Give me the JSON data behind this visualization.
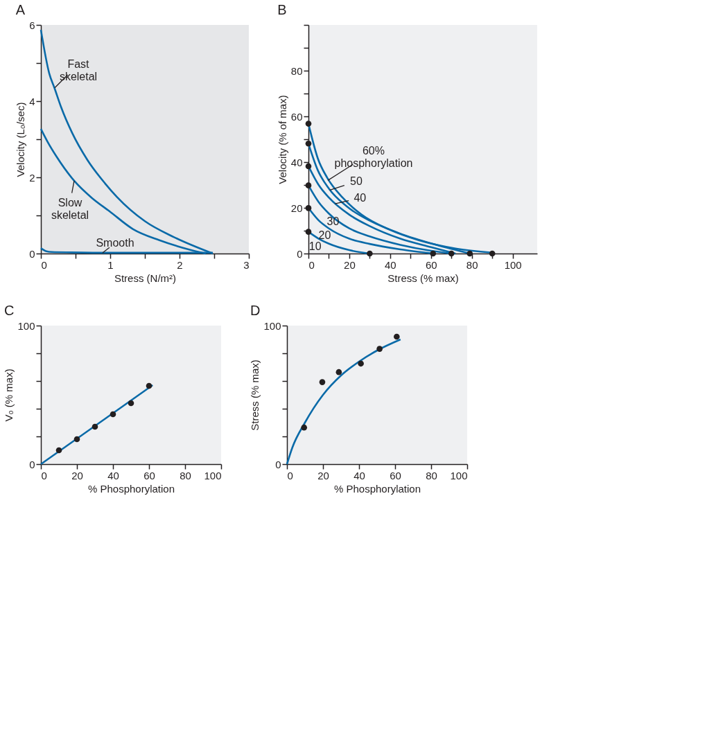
{
  "chart_data": [
    {
      "type": "line",
      "title": "A",
      "xlabel": "Stress (N/m²)",
      "ylabel": "Velocity (L₀/sec)",
      "xlim": [
        0,
        3
      ],
      "ylim": [
        0,
        6
      ],
      "xticks": [
        0,
        {
          "value": 0.5,
          "label": null
        },
        1,
        {
          "value": 1.5,
          "label": null
        },
        2,
        {
          "value": 2.5,
          "label": null
        },
        3
      ],
      "yticks": [
        0,
        {
          "value": 1,
          "label": null
        },
        2,
        {
          "value": 3,
          "label": null
        },
        4,
        {
          "value": 5,
          "label": null
        },
        6
      ],
      "grid": false,
      "series": [
        {
          "color": "#0a6aa8",
          "x": [
            0,
            0.12,
            0.195,
            0.29,
            0.45,
            0.67,
            0.926,
            1.095,
            1.5,
            1.92,
            2.48
          ],
          "values": [
            5.87,
            4.73,
            4.35,
            3.85,
            3.17,
            2.46,
            1.84,
            1.49,
            0.85,
            0.43,
            0
          ]
        },
        {
          "color": "#0a6aa8",
          "x": [
            0,
            0.1,
            0.227,
            0.48,
            0.735,
            0.99,
            1.33,
            1.71,
            2.13,
            2.38
          ],
          "values": [
            3.27,
            2.92,
            2.54,
            1.91,
            1.46,
            1.11,
            0.64,
            0.35,
            0.11,
            0
          ]
        },
        {
          "color": "#0a6aa8",
          "x": [
            0,
            0.08,
            0.16,
            0.44,
            1,
            2,
            2.48
          ],
          "values": [
            0.14,
            0.06,
            0.04,
            0.03,
            0.02,
            0.02,
            0.02
          ]
        }
      ],
      "annotations": [
        {
          "text": "Fast\nskeletal",
          "x": 0.2,
          "y": 4.35
        },
        {
          "text": "Slow\nskeletal",
          "x": 0.48,
          "y": 1.91
        },
        {
          "text": "Smooth",
          "x": 0.89,
          "y": 0.02
        }
      ]
    },
    {
      "type": "line",
      "title": "B",
      "xlabel": "Stress (% max)",
      "ylabel": "Velocity (% of max)",
      "xlim": [
        0,
        112
      ],
      "ylim": [
        0,
        100
      ],
      "xticks": [
        0,
        {
          "value": 10,
          "label": null
        },
        20,
        {
          "value": 30,
          "label": null
        },
        40,
        {
          "value": 50,
          "label": null
        },
        60,
        {
          "value": 70,
          "label": null
        },
        80,
        {
          "value": 90,
          "label": null
        },
        100
      ],
      "yticks": [
        0,
        {
          "value": 10,
          "label": null
        },
        20,
        {
          "value": 30,
          "label": null
        },
        40,
        {
          "value": 50,
          "label": null
        },
        60,
        {
          "value": 70,
          "label": null
        },
        80,
        {
          "value": 90,
          "label": null
        },
        {
          "value": 100,
          "label": null
        }
      ],
      "grid": false,
      "series": [
        {
          "color": "#0a6aa8",
          "x": [
            0,
            5,
            10,
            20,
            30
          ],
          "values": [
            9.5,
            6.5,
            4.3,
            1.5,
            0
          ]
        },
        {
          "color": "#0a6aa8",
          "x": [
            0,
            5,
            10,
            20,
            30,
            45,
            61
          ],
          "values": [
            19.9,
            14.5,
            11,
            6.5,
            4.2,
            1.8,
            0
          ]
        },
        {
          "color": "#0a6aa8",
          "x": [
            0,
            5,
            10,
            20,
            30,
            45,
            60,
            70
          ],
          "values": [
            29.8,
            22.5,
            17.5,
            11,
            7.5,
            3.8,
            1.2,
            0
          ]
        },
        {
          "color": "#0a6aa8",
          "x": [
            0,
            5,
            10,
            20,
            30,
            45,
            60,
            72
          ],
          "values": [
            38.2,
            30,
            24.5,
            17,
            12,
            6.5,
            2.8,
            0
          ]
        },
        {
          "color": "#0a6aa8",
          "x": [
            0,
            4.6,
            10.2,
            18.5,
            30.6,
            44.4,
            63,
            79
          ],
          "values": [
            48.1,
            36.4,
            28.2,
            20.8,
            14.1,
            8.9,
            3.7,
            0
          ]
        },
        {
          "color": "#0a6aa8",
          "x": [
            0,
            4.6,
            9.3,
            16.7,
            25.9,
            39.8,
            53.7,
            72,
            90
          ],
          "values": [
            56.8,
            41.6,
            33,
            24.5,
            17.1,
            10.4,
            5.9,
            2.2,
            0.4
          ]
        },
        {
          "type": "scatter",
          "color": "#231f20",
          "x": [
            0,
            0,
            0,
            0,
            0,
            0,
            30,
            61,
            70,
            79,
            90
          ],
          "values": [
            9.5,
            19.9,
            29.8,
            38.2,
            48.1,
            56.8,
            0,
            0,
            0,
            0,
            0
          ]
        }
      ],
      "annotations": [
        {
          "text": "60%\nphosphorylation",
          "x": 9.5,
          "y": 32
        },
        {
          "text": "50",
          "x": 10.5,
          "y": 27.8
        },
        {
          "text": "40",
          "x": 13,
          "y": 21.8
        },
        {
          "text": "30",
          "x": 10,
          "y": 17.5
        },
        {
          "text": "20",
          "x": 10,
          "y": 11
        },
        {
          "text": "10",
          "x": 5,
          "y": 6.5
        }
      ]
    },
    {
      "type": "scatter",
      "title": "C",
      "xlabel": "% Phosphorylation",
      "ylabel": "V₀ (% max)",
      "xlim": [
        0,
        100
      ],
      "ylim": [
        0,
        100
      ],
      "xticks": [
        0,
        20,
        40,
        60,
        80,
        100
      ],
      "yticks": [
        0,
        {
          "value": 20,
          "label": null
        },
        {
          "value": 40,
          "label": null
        },
        {
          "value": 60,
          "label": null
        },
        {
          "value": 80,
          "label": null
        },
        100
      ],
      "grid": false,
      "series": [
        {
          "type": "line",
          "color": "#0a6aa8",
          "x": [
            0,
            62
          ],
          "values": [
            0,
            57
          ]
        },
        {
          "color": "#231f20",
          "x": [
            10,
            20,
            30,
            40,
            50,
            60
          ],
          "values": [
            10,
            18,
            27,
            36,
            44,
            56.5
          ]
        }
      ]
    },
    {
      "type": "scatter",
      "title": "D",
      "xlabel": "% Phosphorylation",
      "ylabel": "Stress (% max)",
      "xlim": [
        0,
        100
      ],
      "ylim": [
        0,
        100
      ],
      "xticks": [
        0,
        20,
        40,
        60,
        80,
        100
      ],
      "yticks": [
        0,
        {
          "value": 20,
          "label": null
        },
        {
          "value": 40,
          "label": null
        },
        {
          "value": 60,
          "label": null
        },
        {
          "value": 80,
          "label": null
        },
        100
      ],
      "grid": false,
      "series": [
        {
          "type": "line",
          "color": "#0a6aa8",
          "x": [
            0,
            3,
            10,
            20,
            30,
            40,
            50,
            63
          ],
          "values": [
            0,
            12,
            30,
            50,
            64,
            74,
            82,
            90
          ]
        },
        {
          "color": "#231f20",
          "x": [
            9.5,
            19.6,
            28.8,
            41,
            51.4,
            60.9
          ],
          "values": [
            26.4,
            59.2,
            66.4,
            72.6,
            83.2,
            92
          ]
        }
      ]
    }
  ]
}
